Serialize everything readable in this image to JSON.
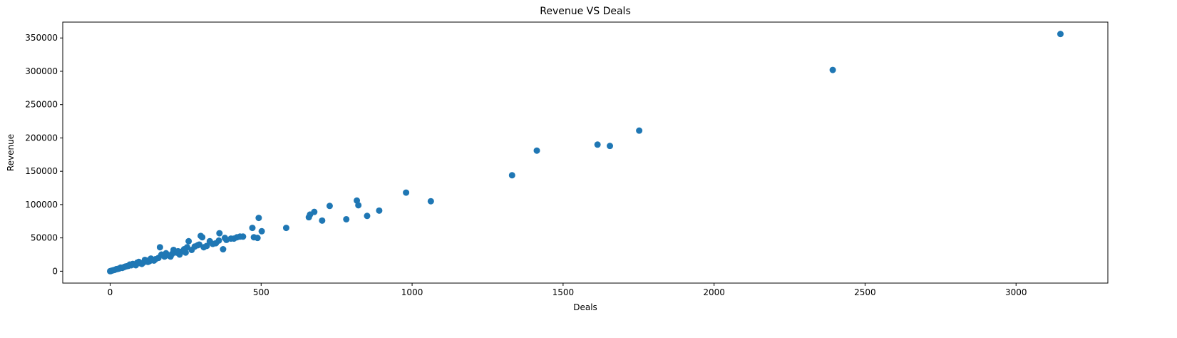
{
  "chart_data": {
    "type": "scatter",
    "title": "Revenue VS Deals",
    "x_label": "Deals",
    "y_label": "Revenue",
    "color": "#1f77b4",
    "x": [
      3147,
      2393,
      1752,
      1655,
      1614,
      1413,
      1331,
      1062,
      980,
      891,
      851,
      822,
      817,
      782,
      727,
      702,
      676,
      662,
      658,
      583,
      502,
      492,
      488,
      476,
      471,
      440,
      430,
      420,
      410,
      400,
      385,
      380,
      374,
      362,
      350,
      330,
      320,
      310,
      305,
      300,
      295,
      280,
      260,
      255,
      250,
      240,
      230,
      220,
      210,
      200,
      190,
      180,
      165,
      160,
      150,
      140,
      130,
      120,
      110,
      100,
      90,
      80,
      70,
      60,
      50,
      40,
      30,
      20,
      10,
      5,
      2,
      0,
      15,
      25,
      35,
      45,
      55,
      65,
      75,
      85,
      95,
      105,
      115,
      125,
      135,
      145,
      170,
      185,
      205,
      225,
      245,
      270,
      290,
      340,
      360
    ],
    "values": [
      356000,
      302000,
      211000,
      188000,
      190000,
      181000,
      144000,
      105000,
      118000,
      91000,
      83000,
      99000,
      106000,
      78000,
      98000,
      76000,
      89000,
      85000,
      81000,
      65000,
      60000,
      80000,
      50000,
      51000,
      65000,
      52000,
      52000,
      51000,
      49000,
      49000,
      47000,
      50000,
      33000,
      57000,
      42000,
      45000,
      38000,
      36000,
      51000,
      53000,
      40000,
      37000,
      45000,
      36000,
      28000,
      30000,
      25000,
      28000,
      32000,
      22000,
      24000,
      22000,
      36000,
      20000,
      18000,
      17000,
      15000,
      16000,
      13000,
      12000,
      13000,
      10000,
      9000,
      8000,
      7000,
      5000,
      4000,
      3000,
      1500,
      800,
      300,
      100,
      2000,
      3500,
      5500,
      6000,
      7500,
      10000,
      11000,
      9000,
      14000,
      11000,
      17000,
      14000,
      19000,
      16000,
      25000,
      27000,
      26000,
      30000,
      33000,
      32000,
      39000,
      41000,
      46000
    ],
    "xlim": [
      -157,
      3304
    ],
    "ylim": [
      -17800,
      373800
    ],
    "xticks": [
      0,
      500,
      1000,
      1500,
      2000,
      2500,
      3000
    ],
    "yticks": [
      0,
      50000,
      100000,
      150000,
      200000,
      250000,
      300000,
      350000
    ]
  }
}
